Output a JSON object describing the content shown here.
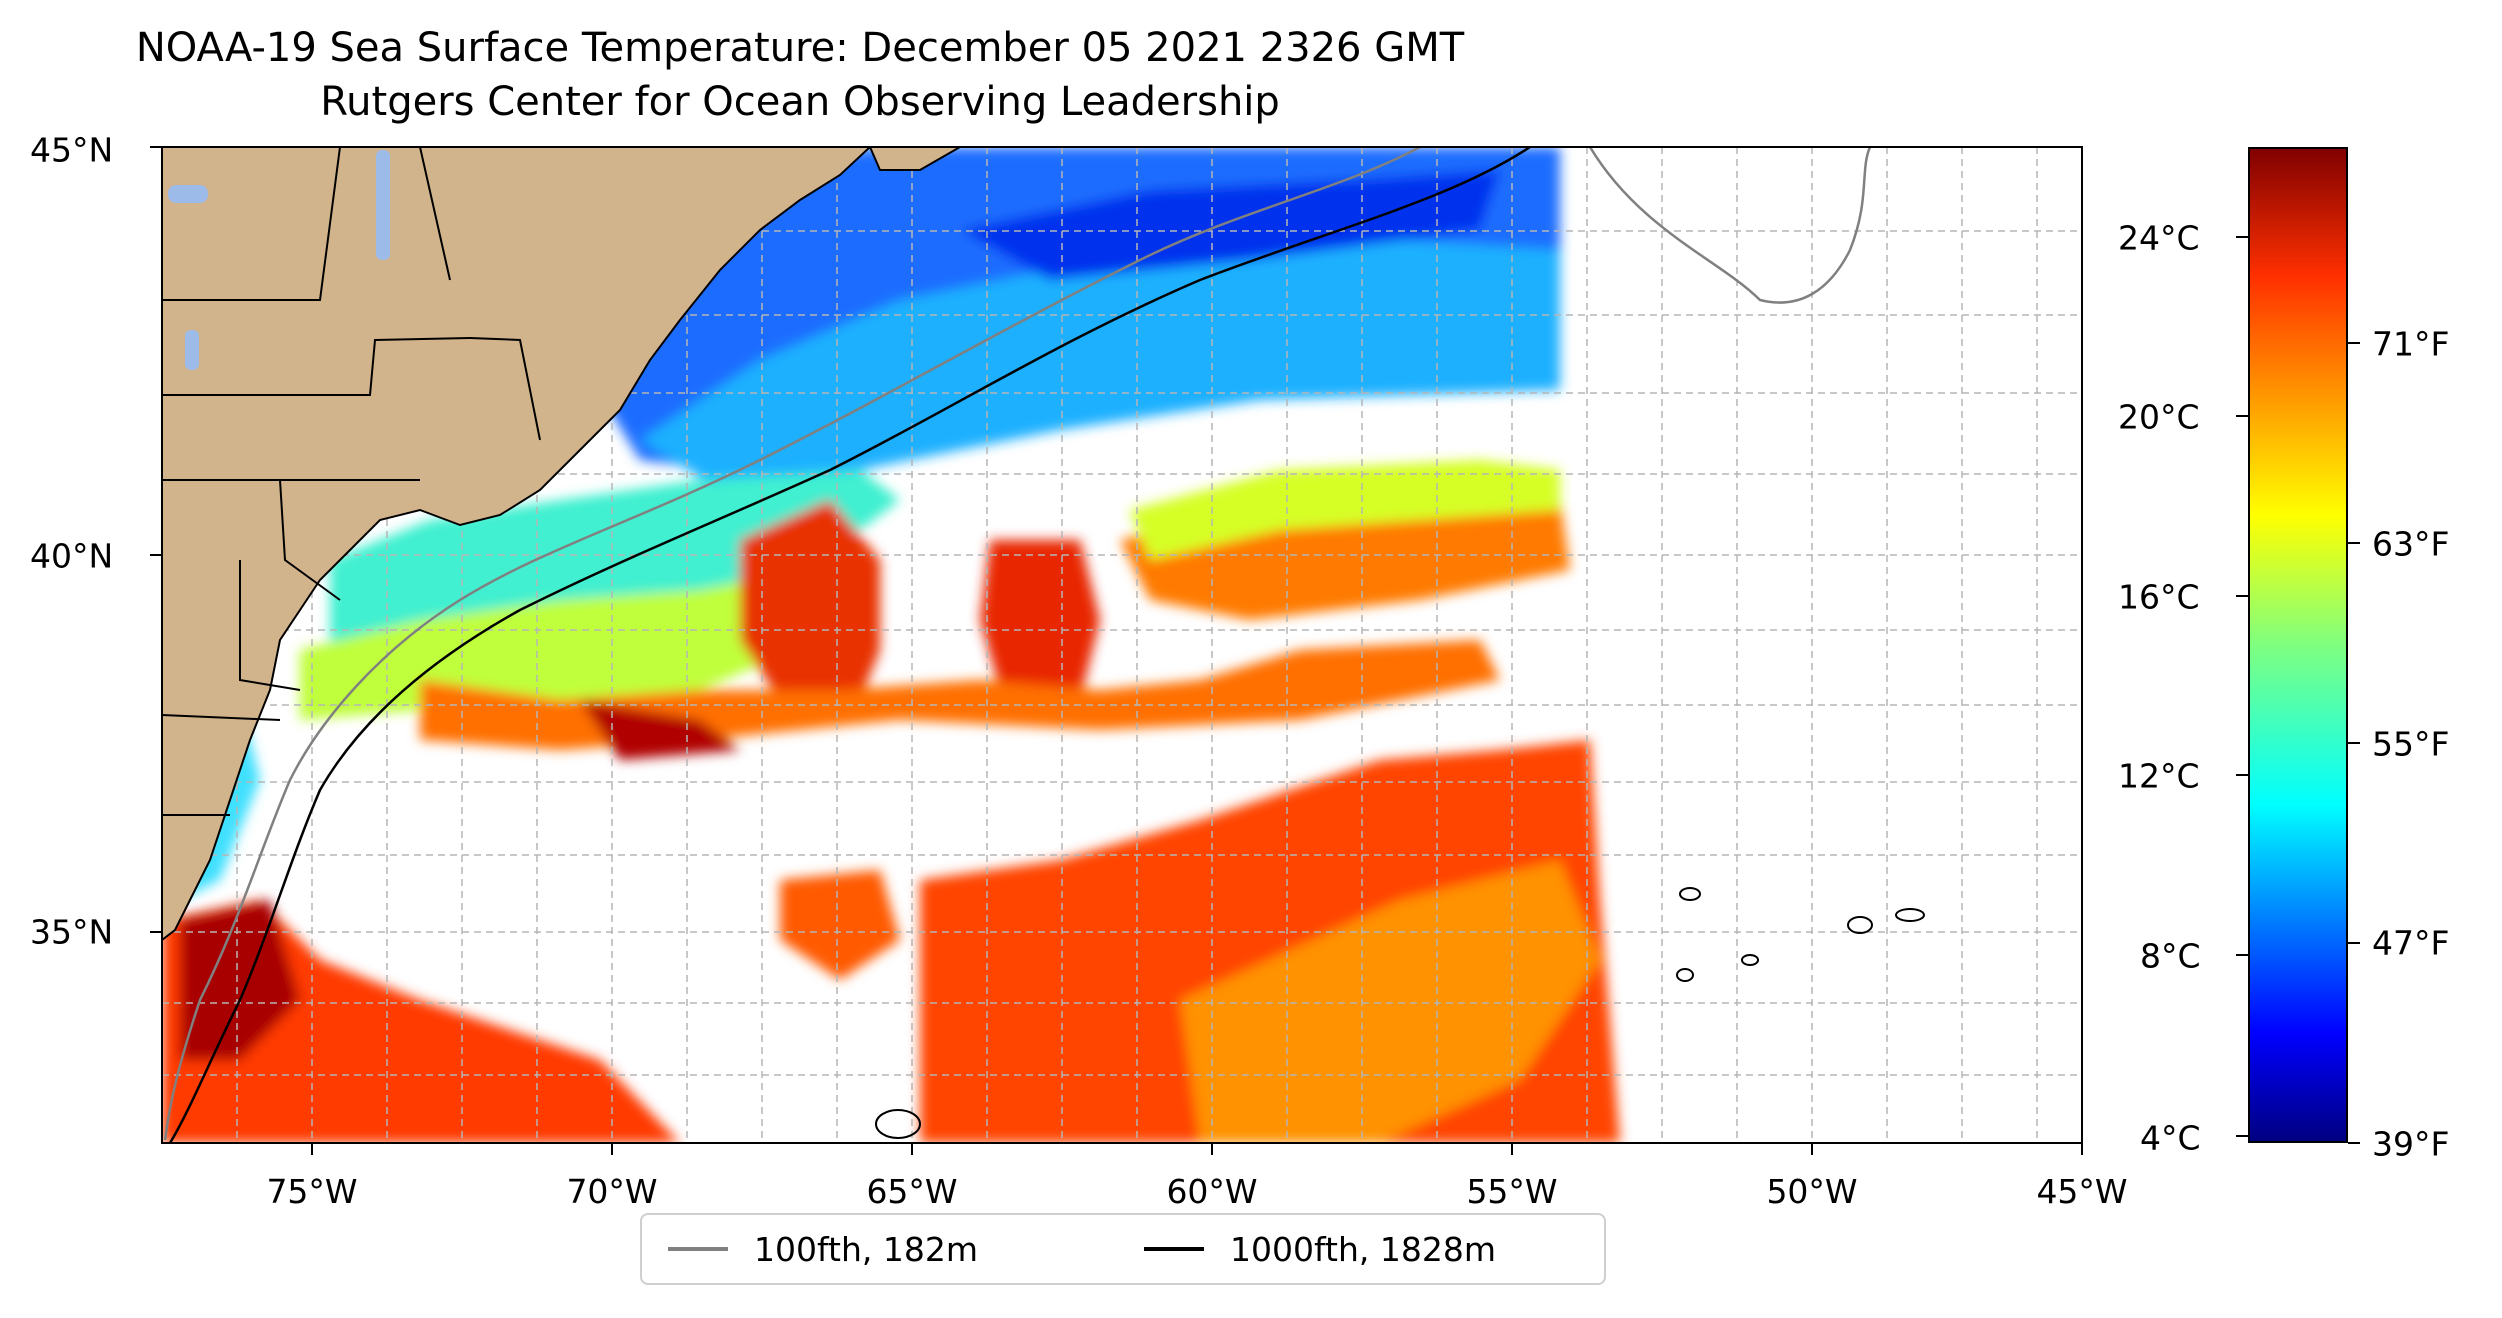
{
  "title_line1": "NOAA-19 Sea Surface Temperature: December 05 2021 2326 GMT",
  "title_line2": "Rutgers Center for Ocean Observing Leadership",
  "map": {
    "lon_range": [
      -77,
      -45
    ],
    "lat_range": [
      32.2,
      45
    ],
    "x_ticks": [
      "75°W",
      "70°W",
      "65°W",
      "60°W",
      "55°W",
      "50°W",
      "45°W"
    ],
    "y_ticks": [
      "45°N",
      "40°N",
      "35°N"
    ],
    "gridlines": true,
    "land_color": "#d2b48c",
    "lake_color": "#9dbbe8"
  },
  "colorbar": {
    "colormap": "jet",
    "celsius_ticks": [
      "24°C",
      "20°C",
      "16°C",
      "12°C",
      "8°C",
      "4°C"
    ],
    "fahrenheit_ticks": [
      "71°F",
      "63°F",
      "55°F",
      "47°F",
      "39°F"
    ],
    "range_c": [
      3.9,
      26.7
    ]
  },
  "legend": {
    "position": "bottom-center",
    "items": [
      {
        "label": "100fth, 182m",
        "color": "#808080"
      },
      {
        "label": "1000fth, 1828m",
        "color": "#000000"
      }
    ]
  }
}
